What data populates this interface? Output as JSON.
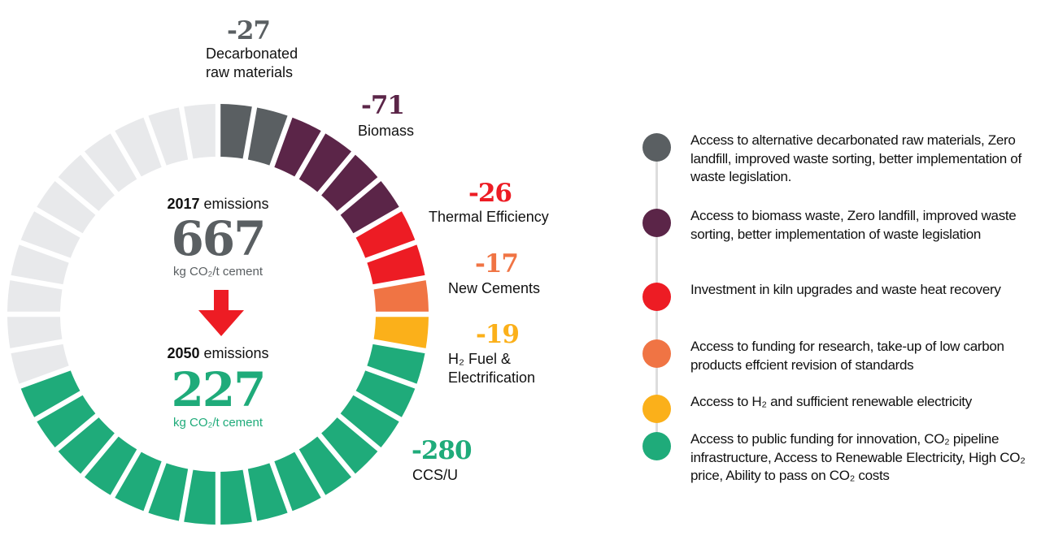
{
  "chart_data": {
    "type": "pie",
    "title": "",
    "start": {
      "year_label": "2017",
      "suffix": "emissions",
      "value": "667",
      "unit": "kg CO₂/t cement"
    },
    "end": {
      "year_label": "2050",
      "suffix": "emissions",
      "value": "227",
      "unit": "kg CO₂/t cement"
    },
    "ring_segments_total": 36,
    "series": [
      {
        "name": "Decarbonated raw materials",
        "label_lines": [
          "Decarbonated",
          "raw materials"
        ],
        "value": -27,
        "value_label": "-27",
        "segments": 2,
        "color": "#5a5f62",
        "legend": "Access to alternative decarbonated raw materials, Zero landfill, improved waste sorting, better implementation of waste legislation."
      },
      {
        "name": "Biomass",
        "label_lines": [
          "Biomass"
        ],
        "value": -71,
        "value_label": "-71",
        "segments": 4,
        "color": "#5b2548",
        "legend": "Access to biomass waste, Zero landfill, improved waste sorting, better implementation of waste legislation"
      },
      {
        "name": "Thermal Efficiency",
        "label_lines": [
          "Thermal Efficiency"
        ],
        "value": -26,
        "value_label": "-26",
        "segments": 2,
        "color": "#ed1c24",
        "legend": "Investment in kiln upgrades and waste heat recovery"
      },
      {
        "name": "New Cements",
        "label_lines": [
          "New Cements"
        ],
        "value": -17,
        "value_label": "-17",
        "segments": 1,
        "color": "#f07444",
        "legend": "Access to funding for research, take-up of low carbon products effcient revision of standards"
      },
      {
        "name": "H₂ Fuel & Electrification",
        "label_lines": [
          "H₂ Fuel &",
          "Electrification"
        ],
        "value": -19,
        "value_label": "-19",
        "segments": 1,
        "color": "#fbb01a",
        "legend": "Access to H₂ and sufficient renewable electricity"
      },
      {
        "name": "CCS/U",
        "label_lines": [
          "CCS/U"
        ],
        "value": -280,
        "value_label": "-280",
        "segments": 15,
        "color": "#1fab7a",
        "legend": "Access to public funding for innovation, CO₂ pipeline infrastructure, Access to Renewable Electricity, High CO₂ price, Ability to pass on CO₂ costs"
      }
    ],
    "remaining_color": "#e8e9eb",
    "start_value_color": "#5a5f62",
    "end_value_color": "#1fab7a",
    "arrow_color": "#ed1c24"
  }
}
